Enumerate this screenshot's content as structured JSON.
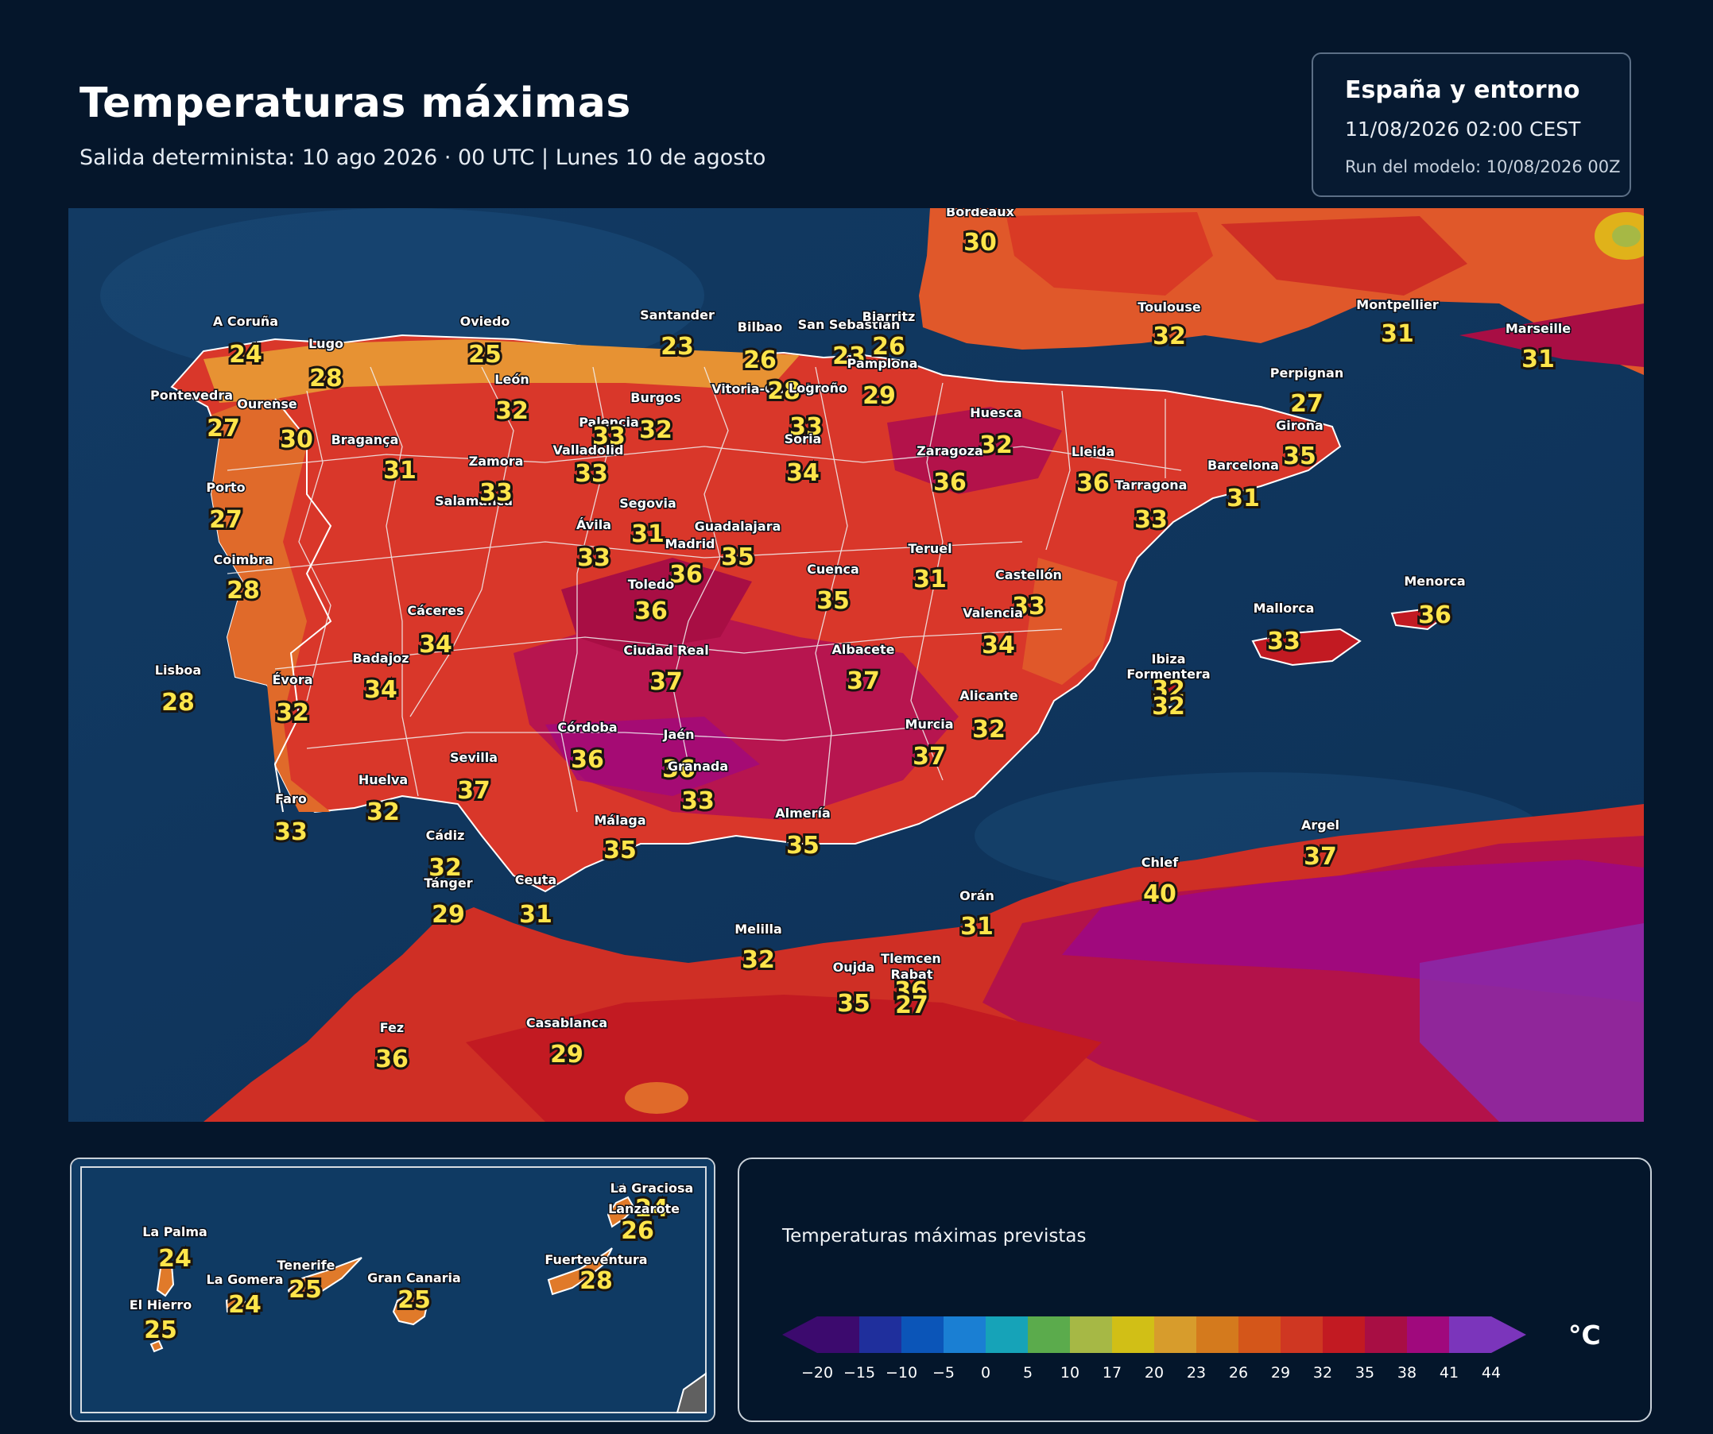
{
  "header": {
    "title": "Temperaturas máximas",
    "subtitle": "Salida determinista: 10 ago 2026 · 00 UTC  |  Lunes 10 de agosto"
  },
  "info": {
    "region": "España y entorno",
    "valid": "11/08/2026  02:00 CEST",
    "run": "Run del modelo: 10/08/2026 00Z"
  },
  "map": {
    "cities": [
      {
        "name": "Bordeaux",
        "temp": "30"
      },
      {
        "name": "A Coruña",
        "temp": "24"
      },
      {
        "name": "Lugo",
        "temp": "28"
      },
      {
        "name": "Oviedo",
        "temp": "25"
      },
      {
        "name": "Santander",
        "temp": "23"
      },
      {
        "name": "Bilbao",
        "temp": "26"
      },
      {
        "name": "San Sebastián",
        "temp": "23"
      },
      {
        "name": "Biarritz",
        "temp": "26"
      },
      {
        "name": "Vitoria-Gasteiz",
        "temp": "28"
      },
      {
        "name": "Pamplona",
        "temp": "29"
      },
      {
        "name": "Logroño",
        "temp": "33"
      },
      {
        "name": "Toulouse",
        "temp": "32"
      },
      {
        "name": "Montpellier",
        "temp": "31"
      },
      {
        "name": "Marseille",
        "temp": "31"
      },
      {
        "name": "Perpignan",
        "temp": "27"
      },
      {
        "name": "Pontevedra",
        "temp": "27"
      },
      {
        "name": "Ourense",
        "temp": "30"
      },
      {
        "name": "León",
        "temp": "32"
      },
      {
        "name": "Burgos",
        "temp": "32"
      },
      {
        "name": "Palencia",
        "temp": "33"
      },
      {
        "name": "Huesca",
        "temp": "32"
      },
      {
        "name": "Girona",
        "temp": "35"
      },
      {
        "name": "Bragança",
        "temp": "31"
      },
      {
        "name": "Soria",
        "temp": "34"
      },
      {
        "name": "Zaragoza",
        "temp": "36"
      },
      {
        "name": "Lleida",
        "temp": "36"
      },
      {
        "name": "Valladolid",
        "temp": "33"
      },
      {
        "name": "Zamora",
        "temp": "33"
      },
      {
        "name": "Barcelona",
        "temp": "31"
      },
      {
        "name": "Tarragona",
        "temp": "33"
      },
      {
        "name": "Porto",
        "temp": "27"
      },
      {
        "name": "Salamanca",
        "temp": "33"
      },
      {
        "name": "Segovia",
        "temp": "31"
      },
      {
        "name": "Ávila",
        "temp": "33"
      },
      {
        "name": "Guadalajara",
        "temp": "35"
      },
      {
        "name": "Madrid",
        "temp": "36"
      },
      {
        "name": "Teruel",
        "temp": "31"
      },
      {
        "name": "Coimbra",
        "temp": "28"
      },
      {
        "name": "Cuenca",
        "temp": "35"
      },
      {
        "name": "Toledo",
        "temp": "36"
      },
      {
        "name": "Castellón",
        "temp": "33"
      },
      {
        "name": "Cáceres",
        "temp": "34"
      },
      {
        "name": "Valencia",
        "temp": "34"
      },
      {
        "name": "Mallorca",
        "temp": "33"
      },
      {
        "name": "Menorca",
        "temp": "36"
      },
      {
        "name": "Ciudad Real",
        "temp": "37"
      },
      {
        "name": "Albacete",
        "temp": "37"
      },
      {
        "name": "Badajoz",
        "temp": "34"
      },
      {
        "name": "Lisboa",
        "temp": "28"
      },
      {
        "name": "Évora",
        "temp": "32"
      },
      {
        "name": "Ibiza",
        "temp": "32"
      },
      {
        "name": "Formentera",
        "temp": "32"
      },
      {
        "name": "Alicante",
        "temp": "32"
      },
      {
        "name": "Murcia",
        "temp": "37"
      },
      {
        "name": "Córdoba",
        "temp": "36"
      },
      {
        "name": "Jaén",
        "temp": "36"
      },
      {
        "name": "Granada",
        "temp": "33"
      },
      {
        "name": "Sevilla",
        "temp": "37"
      },
      {
        "name": "Huelva",
        "temp": "32"
      },
      {
        "name": "Faro",
        "temp": "33"
      },
      {
        "name": "Almería",
        "temp": "35"
      },
      {
        "name": "Málaga",
        "temp": "35"
      },
      {
        "name": "Cádiz",
        "temp": "32"
      },
      {
        "name": "Argel",
        "temp": "37"
      },
      {
        "name": "Tánger",
        "temp": "29"
      },
      {
        "name": "Ceuta",
        "temp": "31"
      },
      {
        "name": "Chlef",
        "temp": "40"
      },
      {
        "name": "Orán",
        "temp": "31"
      },
      {
        "name": "Melilla",
        "temp": "32"
      },
      {
        "name": "Tlemcen",
        "temp": "36"
      },
      {
        "name": "Oujda",
        "temp": "35"
      },
      {
        "name": "Rabat",
        "temp": "27"
      },
      {
        "name": "Fez",
        "temp": "36"
      },
      {
        "name": "Casablanca",
        "temp": "29"
      }
    ]
  },
  "canarias": {
    "islands": [
      {
        "name": "La Graciosa",
        "temp": "24"
      },
      {
        "name": "Lanzarote",
        "temp": "26"
      },
      {
        "name": "La Palma",
        "temp": "24"
      },
      {
        "name": "Tenerife",
        "temp": "25"
      },
      {
        "name": "Fuerteventura",
        "temp": "28"
      },
      {
        "name": "La Gomera",
        "temp": "24"
      },
      {
        "name": "Gran Canaria",
        "temp": "25"
      },
      {
        "name": "El Hierro",
        "temp": "25"
      }
    ]
  },
  "legend": {
    "title": "Temperaturas máximas previstas",
    "unit": "°C",
    "ticks": [
      "−20",
      "−15",
      "−10",
      "−5",
      "0",
      "5",
      "10",
      "17",
      "20",
      "23",
      "26",
      "29",
      "32",
      "35",
      "38",
      "41",
      "44"
    ],
    "colors": [
      "#3c0a6e",
      "#1f2f9c",
      "#0b55b8",
      "#1a7fd3",
      "#16a3b8",
      "#5bab4c",
      "#a6b845",
      "#d1bf16",
      "#d79c2c",
      "#d47a1d",
      "#d4561a",
      "#cf3722",
      "#c21a22",
      "#a80e44",
      "#a0097d",
      "#7b35bb"
    ]
  }
}
